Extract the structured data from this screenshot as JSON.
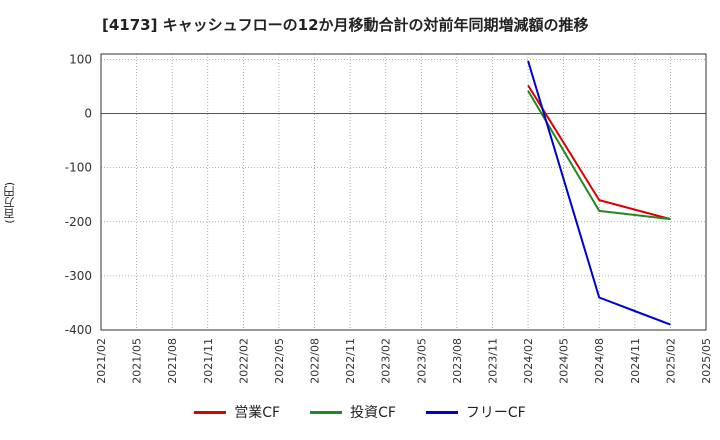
{
  "chart_data": {
    "type": "line",
    "title": "[4173]  キャッシュフローの12か月移動合計の対前年同期増減額の推移",
    "xlabel": "",
    "ylabel": "(百万円)",
    "ylim": [
      -400,
      110
    ],
    "yticks": [
      100,
      0,
      -100,
      -200,
      -300,
      -400
    ],
    "xticks": [
      "2021/02",
      "2021/05",
      "2021/08",
      "2021/11",
      "2022/02",
      "2022/05",
      "2022/08",
      "2022/11",
      "2023/02",
      "2023/05",
      "2023/08",
      "2023/11",
      "2024/02",
      "2024/05",
      "2024/08",
      "2024/11",
      "2025/02",
      "2025/05"
    ],
    "grid": true,
    "legend_position": "bottom",
    "series": [
      {
        "name": "営業CF",
        "color": "#dd0000",
        "x": [
          "2024/02",
          "2024/08",
          "2025/02"
        ],
        "values": [
          52,
          -160,
          -195
        ]
      },
      {
        "name": "投資CF",
        "color": "#228822",
        "x": [
          "2024/02",
          "2024/08",
          "2025/02"
        ],
        "values": [
          42,
          -180,
          -195
        ]
      },
      {
        "name": "フリーCF",
        "color": "#0000cc",
        "x": [
          "2024/02",
          "2024/08",
          "2025/02"
        ],
        "values": [
          97,
          -340,
          -390
        ]
      }
    ]
  }
}
